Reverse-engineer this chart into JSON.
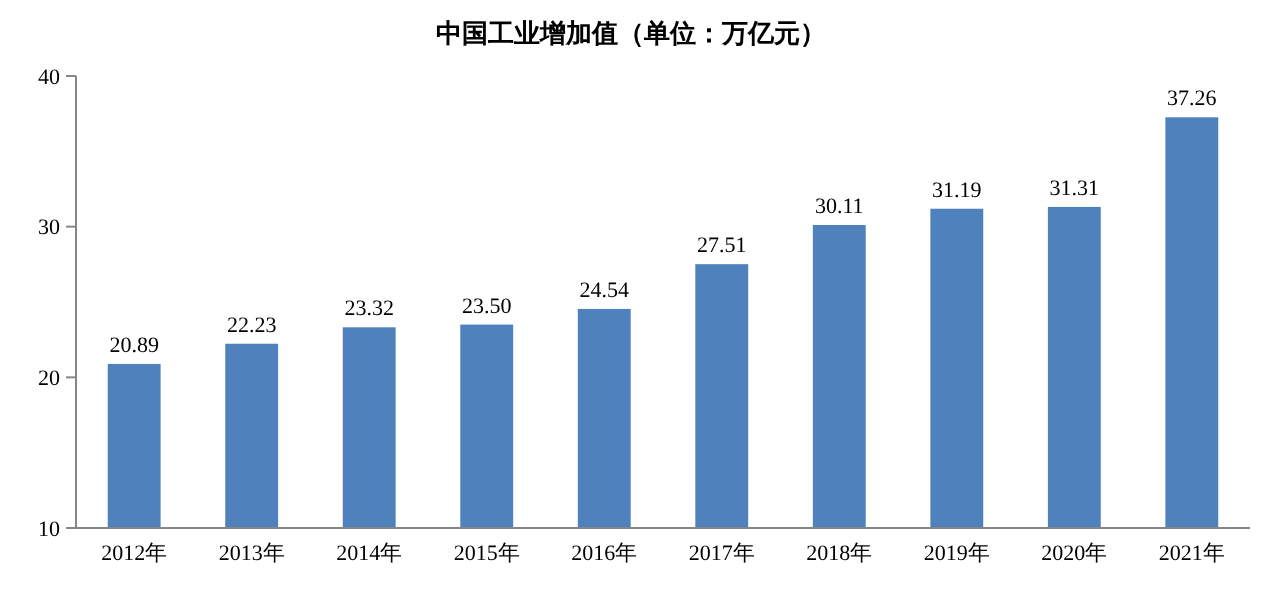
{
  "chart_data": {
    "type": "bar",
    "title": "中国工业增加值（单位：万亿元）",
    "categories": [
      "2012年",
      "2013年",
      "2014年",
      "2015年",
      "2016年",
      "2017年",
      "2018年",
      "2019年",
      "2020年",
      "2021年"
    ],
    "values": [
      20.89,
      22.23,
      23.32,
      23.5,
      24.54,
      27.51,
      30.11,
      31.19,
      31.31,
      37.26
    ],
    "value_labels": [
      "20.89",
      "22.23",
      "23.32",
      "23.50",
      "24.54",
      "27.51",
      "30.11",
      "31.19",
      "31.31",
      "37.26"
    ],
    "color": "#4f81bd",
    "ylim": [
      10,
      40
    ],
    "yticks": [
      10,
      20,
      30,
      40
    ],
    "grid": false
  }
}
